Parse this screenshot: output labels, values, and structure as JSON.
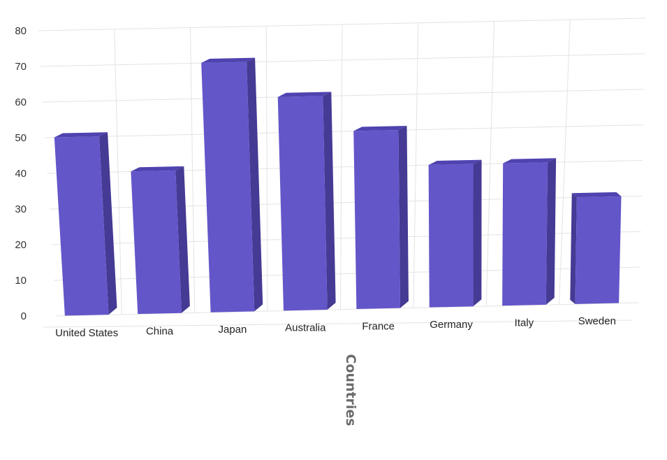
{
  "chart_data": {
    "type": "bar",
    "title": "",
    "xlabel": "Countries",
    "ylabel": "",
    "categories": [
      "United States",
      "China",
      "Japan",
      "Australia",
      "France",
      "Germany",
      "Italy",
      "Sweden"
    ],
    "values": [
      50,
      40,
      70,
      60,
      50,
      40,
      40,
      30
    ],
    "ylim": [
      0,
      80
    ],
    "yticks": [
      "0",
      "10",
      "20",
      "30",
      "40",
      "50",
      "60",
      "70",
      "80"
    ],
    "grid": true,
    "legend": "none",
    "colors": {
      "front": "#6356c9",
      "side": "#453a94",
      "top": "#4f43b0"
    }
  }
}
